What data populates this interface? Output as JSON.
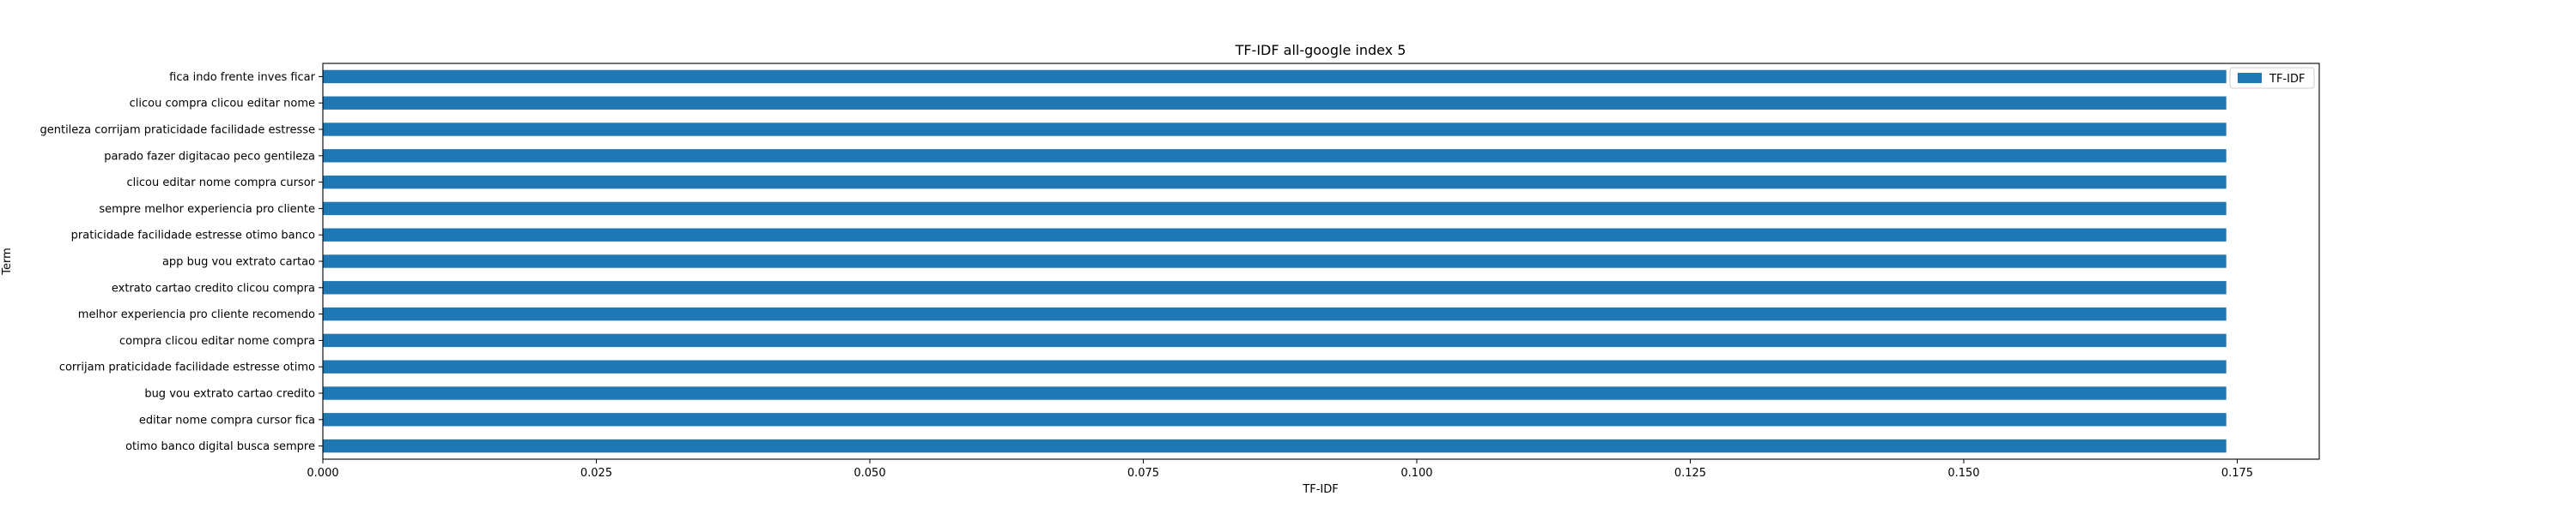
{
  "chart_data": {
    "type": "bar",
    "orientation": "horizontal",
    "title": "TF-IDF all-google index 5",
    "xlabel": "TF-IDF",
    "ylabel": "Term",
    "xlim": [
      0,
      0.1825
    ],
    "xticks": [
      "0.000",
      "0.025",
      "0.050",
      "0.075",
      "0.100",
      "0.125",
      "0.150",
      "0.175"
    ],
    "xtick_values": [
      0,
      0.025,
      0.05,
      0.075,
      0.1,
      0.125,
      0.15,
      0.175
    ],
    "categories": [
      "fica indo frente inves ficar",
      "clicou compra clicou editar nome",
      "gentileza corrijam praticidade facilidade estresse",
      "parado fazer digitacao peco gentileza",
      "clicou editar nome compra cursor",
      "sempre melhor experiencia pro cliente",
      "praticidade facilidade estresse otimo banco",
      "app bug vou extrato cartao",
      "extrato cartao credito clicou compra",
      "melhor experiencia pro cliente recomendo",
      "compra clicou editar nome compra",
      "corrijam praticidade facilidade estresse otimo",
      "bug vou extrato cartao credito",
      "editar nome compra cursor fica",
      "otimo banco digital busca sempre"
    ],
    "series": [
      {
        "name": "TF-IDF",
        "color": "#1f77b4",
        "values": [
          0.174,
          0.174,
          0.174,
          0.174,
          0.174,
          0.174,
          0.174,
          0.174,
          0.174,
          0.174,
          0.174,
          0.174,
          0.174,
          0.174,
          0.174
        ]
      }
    ],
    "legend_position": "top-right",
    "grid": false
  }
}
